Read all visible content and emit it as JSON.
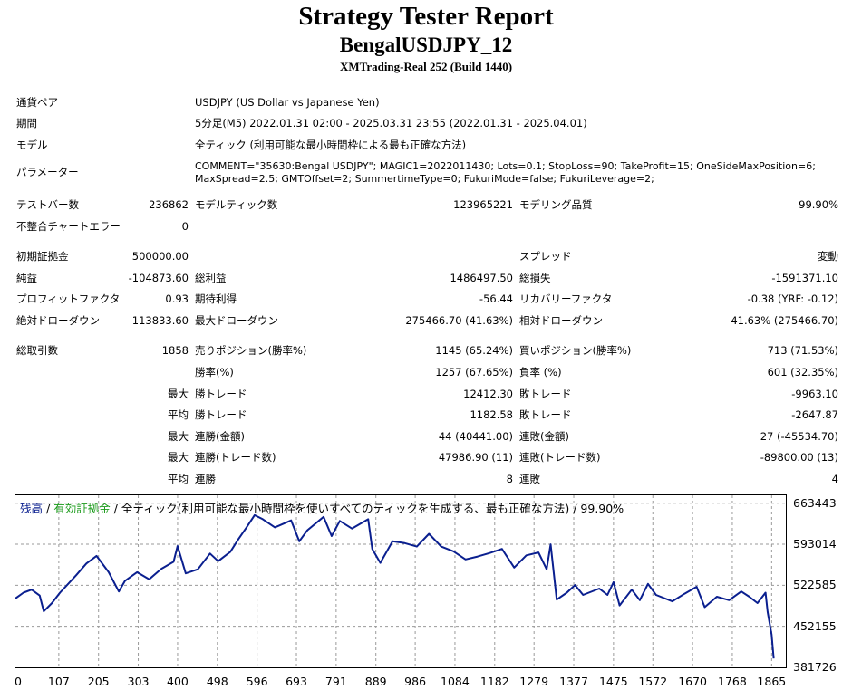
{
  "header": {
    "title": "Strategy Tester Report",
    "subtitle": "BengalUSDJPY_12",
    "server": "XMTrading-Real 252 (Build 1440)"
  },
  "info": {
    "symbol_label": "通貨ペア",
    "symbol_value": "USDJPY (US Dollar vs Japanese Yen)",
    "period_label": "期間",
    "period_value": "5分足(M5) 2022.01.31 02:00 - 2025.03.31 23:55 (2022.01.31 - 2025.04.01)",
    "model_label": "モデル",
    "model_value": "全ティック (利用可能な最小時間枠による最も正確な方法)",
    "params_label": "パラメーター",
    "params_line1": "COMMENT=\"35630:Bengal USDJPY\"; MAGIC1=2022011430; Lots=0.1; StopLoss=90; TakeProfit=15; OneSideMaxPosition=6;",
    "params_line2": "MaxSpread=2.5; GMTOffset=2; SummertimeType=0; FukuriMode=false; FukuriLeverage=2;"
  },
  "stats": {
    "bars_label": "テストバー数",
    "bars_value": "236862",
    "ticks_label": "モデルティック数",
    "ticks_value": "123965221",
    "quality_label": "モデリング品質",
    "quality_value": "99.90%",
    "mismatch_label": "不整合チャートエラー",
    "mismatch_value": "0",
    "deposit_label": "初期証拠金",
    "deposit_value": "500000.00",
    "spread_label": "スプレッド",
    "spread_value": "変動",
    "net_label": "純益",
    "net_value": "-104873.60",
    "gross_profit_label": "総利益",
    "gross_profit_value": "1486497.50",
    "gross_loss_label": "総損失",
    "gross_loss_value": "-1591371.10",
    "pf_label": "プロフィットファクタ",
    "pf_value": "0.93",
    "expected_label": "期待利得",
    "expected_value": "-56.44",
    "recovery_label": "リカバリーファクタ",
    "recovery_value": "-0.38 (YRF: -0.12)",
    "abs_dd_label": "絶対ドローダウン",
    "abs_dd_value": "113833.60",
    "max_dd_label": "最大ドローダウン",
    "max_dd_value": "275466.70 (41.63%)",
    "rel_dd_label": "相対ドローダウン",
    "rel_dd_value": "41.63% (275466.70)",
    "trades_label": "総取引数",
    "trades_value": "1858",
    "short_label": "売りポジション(勝率%)",
    "short_value": "1145 (65.24%)",
    "long_label": "買いポジション(勝率%)",
    "long_value": "713 (71.53%)",
    "winrate_label": "勝率(%)",
    "winrate_value": "1257 (67.65%)",
    "lossrate_label": "負率 (%)",
    "lossrate_value": "601 (32.35%)",
    "max_prefix": "最大",
    "avg_prefix": "平均",
    "max_win_label": "勝トレード",
    "max_win_value": "12412.30",
    "max_loss_label": "敗トレード",
    "max_loss_value": "-9963.10",
    "avg_win_label": "勝トレード",
    "avg_win_value": "1182.58",
    "avg_loss_label": "敗トレード",
    "avg_loss_value": "-2647.87",
    "consec_wins_amt_label": "連勝(金額)",
    "consec_wins_amt_value": "44 (40441.00)",
    "consec_loss_amt_label": "連敗(金額)",
    "consec_loss_amt_value": "27 (-45534.70)",
    "consec_wins_cnt_label": "連勝(トレード数)",
    "consec_wins_cnt_value": "47986.90 (11)",
    "consec_loss_cnt_label": "連敗(トレード数)",
    "consec_loss_cnt_value": "-89800.00 (13)",
    "avg_consec_wins_label": "連勝",
    "avg_consec_wins_value": "8",
    "avg_consec_loss_label": "連敗",
    "avg_consec_loss_value": "4"
  },
  "chart_data": {
    "type": "line",
    "legend_balance": "残高",
    "legend_sep1": " / ",
    "legend_equity": "有効証拠金",
    "legend_sep2": " / ",
    "legend_desc": "全ティック(利用可能な最小時間枠を使いすべてのティックを生成する、最も正確な方法) / 99.90%",
    "balance_color": "#0a1f8f",
    "equity_color": "#1a9a1a",
    "grid": true,
    "xlim": [
      0,
      1900
    ],
    "ylim": [
      381726,
      677000
    ],
    "x_ticks": [
      "0",
      "107",
      "205",
      "303",
      "400",
      "498",
      "596",
      "693",
      "791",
      "889",
      "986",
      "1084",
      "1182",
      "1279",
      "1377",
      "1475",
      "1572",
      "1670",
      "1768",
      "1865"
    ],
    "y_ticks": [
      "663443",
      "593014",
      "522585",
      "452155",
      "381726"
    ],
    "series": [
      {
        "x": [
          0,
          20,
          40,
          60,
          70,
          90,
          110,
          130,
          150,
          175,
          200,
          230,
          255,
          270,
          300,
          330,
          360,
          390,
          400,
          420,
          450,
          480,
          500,
          530,
          550,
          570,
          590,
          610,
          640,
          680,
          700,
          720,
          760,
          780,
          800,
          830,
          870,
          880,
          900,
          930,
          960,
          990,
          1020,
          1050,
          1080,
          1110,
          1140,
          1170,
          1200,
          1230,
          1260,
          1290,
          1310,
          1320,
          1335,
          1360,
          1380,
          1400,
          1440,
          1460,
          1475,
          1490,
          1520,
          1540,
          1560,
          1580,
          1620,
          1650,
          1680,
          1700,
          1730,
          1760,
          1790,
          1810,
          1830,
          1850,
          1855,
          1865,
          1870
        ],
        "values": [
          500000,
          510000,
          515000,
          505000,
          478000,
          492000,
          510000,
          525000,
          540000,
          560000,
          573000,
          545000,
          512000,
          530000,
          545000,
          533000,
          551000,
          563000,
          590000,
          543000,
          550000,
          577000,
          564000,
          580000,
          602000,
          622000,
          643000,
          636000,
          622000,
          634000,
          598000,
          617000,
          640000,
          607000,
          633000,
          620000,
          636000,
          585000,
          561000,
          598000,
          595000,
          589000,
          611000,
          589000,
          581000,
          567000,
          572000,
          578000,
          585000,
          553000,
          574000,
          579000,
          550000,
          593000,
          498000,
          510000,
          523000,
          506000,
          517000,
          506000,
          528000,
          488000,
          515000,
          497000,
          525000,
          506000,
          495000,
          508000,
          520000,
          485000,
          503000,
          497000,
          512000,
          503000,
          492000,
          510000,
          477000,
          438000,
          397000
        ]
      }
    ]
  }
}
